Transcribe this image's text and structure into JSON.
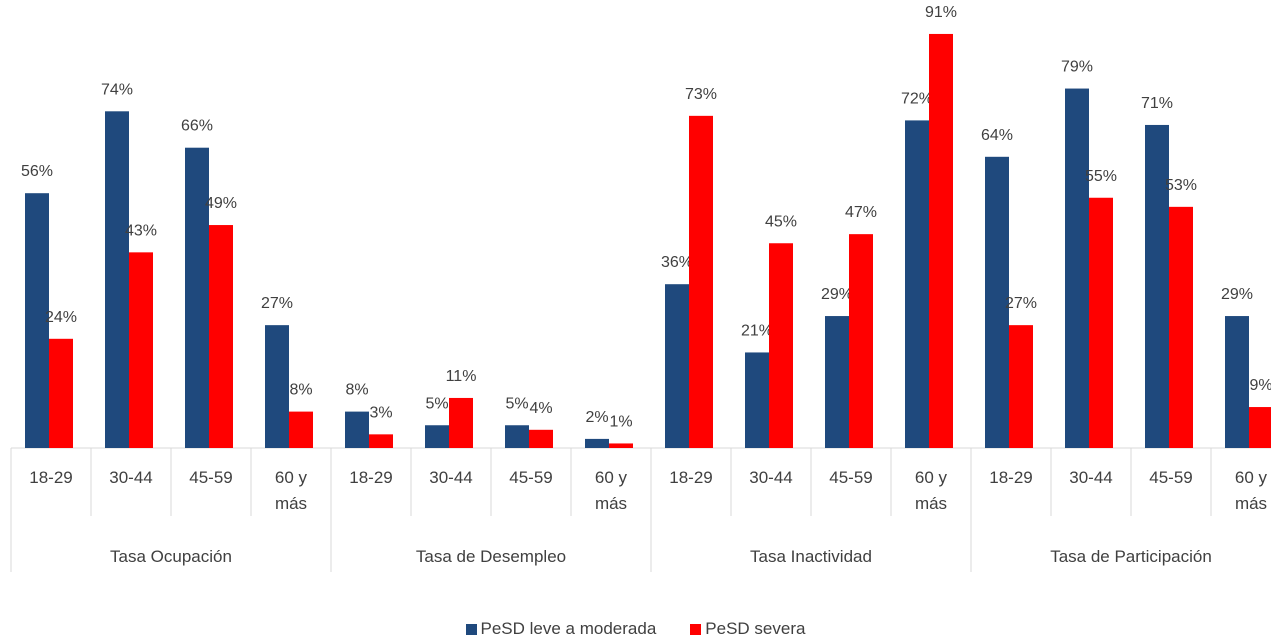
{
  "chart_data": {
    "type": "bar",
    "groups": [
      {
        "label": "Tasa Ocupación",
        "categories": [
          "18-29",
          "30-44",
          "45-59",
          "60 y más"
        ]
      },
      {
        "label": "Tasa de Desempleo",
        "categories": [
          "18-29",
          "30-44",
          "45-59",
          "60 y más"
        ]
      },
      {
        "label": "Tasa Inactividad",
        "categories": [
          "18-29",
          "30-44",
          "45-59",
          "60 y más"
        ]
      },
      {
        "label": "Tasa de Participación",
        "categories": [
          "18-29",
          "30-44",
          "45-59",
          "60 y más"
        ]
      }
    ],
    "series": [
      {
        "name": "PeSD leve a moderada",
        "color": "#1F497D",
        "values": [
          56,
          74,
          66,
          27,
          8,
          5,
          5,
          2,
          36,
          21,
          29,
          72,
          64,
          79,
          71,
          29
        ],
        "labels": [
          "56%",
          "74%",
          "66%",
          "27%",
          "8%",
          "5%",
          "5%",
          "2%",
          "36%",
          "21%",
          "29%",
          "72%",
          "64%",
          "79%",
          "71%",
          "29%"
        ]
      },
      {
        "name": "PeSD severa",
        "color": "#FF0000",
        "values": [
          24,
          43,
          49,
          8,
          3,
          11,
          4,
          1,
          73,
          45,
          47,
          91,
          27,
          55,
          53,
          9
        ],
        "labels": [
          "24%",
          "43%",
          "49%",
          "8%",
          "3%",
          "11%",
          "4%",
          "1%",
          "73%",
          "45%",
          "47%",
          "91%",
          "27%",
          "55%",
          "53%",
          "9%"
        ]
      }
    ],
    "ylim": [
      0,
      100
    ],
    "legend_position": "bottom",
    "grid": false
  }
}
